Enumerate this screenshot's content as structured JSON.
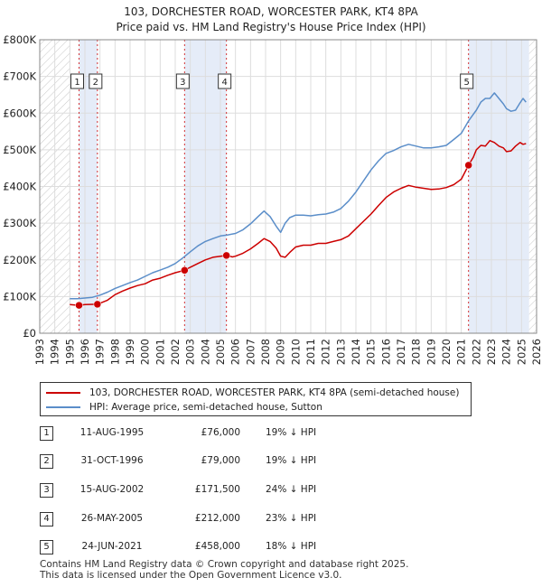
{
  "chart_data": {
    "type": "line",
    "title": "103, DORCHESTER ROAD, WORCESTER PARK, KT4 8PA",
    "subtitle": "Price paid vs. HM Land Registry's House Price Index (HPI)",
    "xlim": [
      1993,
      2026
    ],
    "ylim": [
      0,
      800000
    ],
    "x_ticks": [
      1993,
      1994,
      1995,
      1996,
      1997,
      1998,
      1999,
      2000,
      2001,
      2002,
      2003,
      2004,
      2005,
      2006,
      2007,
      2008,
      2009,
      2010,
      2011,
      2012,
      2013,
      2014,
      2015,
      2016,
      2017,
      2018,
      2019,
      2020,
      2021,
      2022,
      2023,
      2024,
      2025,
      2026
    ],
    "y_ticks": [
      0,
      100000,
      200000,
      300000,
      400000,
      500000,
      600000,
      700000,
      800000
    ],
    "y_tick_labels": [
      "£0",
      "£100K",
      "£200K",
      "£300K",
      "£400K",
      "£500K",
      "£600K",
      "£700K",
      "£800K"
    ],
    "hatch_before": 1995,
    "hatch_after": 2025.5,
    "shaded_spans": [
      [
        1995.61,
        1996.83
      ],
      [
        2002.62,
        2005.4
      ],
      [
        2021.48,
        2025.5
      ]
    ],
    "colors": {
      "price": "#cc0000",
      "hpi": "#5b8ec9",
      "marker": "#cc0000",
      "guide": "#cc0000",
      "shade": "#dce6f5"
    },
    "series": [
      {
        "name": "103, DORCHESTER ROAD, WORCESTER PARK, KT4 8PA (semi-detached house)",
        "key": "price",
        "x": [
          1995.0,
          1995.61,
          1996.0,
          1996.83,
          1997.5,
          1998,
          1998.5,
          1999,
          1999.5,
          2000,
          2000.5,
          2001,
          2001.5,
          2002,
          2002.62,
          2003,
          2003.5,
          2004,
          2004.5,
          2005,
          2005.4,
          2005.8,
          2006,
          2006.5,
          2007,
          2007.5,
          2007.9,
          2008.3,
          2008.7,
          2009,
          2009.3,
          2009.6,
          2010,
          2010.5,
          2011,
          2011.5,
          2012,
          2012.5,
          2013,
          2013.5,
          2014,
          2014.5,
          2015,
          2015.5,
          2016,
          2016.5,
          2017,
          2017.5,
          2018,
          2018.5,
          2019,
          2019.5,
          2020,
          2020.5,
          2021,
          2021.48,
          2021.8,
          2022,
          2022.3,
          2022.6,
          2022.9,
          2023.2,
          2023.5,
          2023.8,
          2024,
          2024.3,
          2024.6,
          2024.9,
          2025.1,
          2025.3
        ],
        "y": [
          78000,
          76000,
          78000,
          79000,
          90000,
          105000,
          115000,
          123000,
          130000,
          135000,
          145000,
          150000,
          158000,
          165000,
          171500,
          180000,
          190000,
          200000,
          207000,
          210000,
          212000,
          208000,
          210000,
          218000,
          230000,
          245000,
          258000,
          250000,
          232000,
          210000,
          207000,
          220000,
          235000,
          240000,
          240000,
          245000,
          245000,
          250000,
          255000,
          265000,
          285000,
          305000,
          325000,
          348000,
          370000,
          385000,
          395000,
          403000,
          398000,
          395000,
          392000,
          393000,
          397000,
          405000,
          420000,
          458000,
          480000,
          500000,
          512000,
          510000,
          525000,
          520000,
          510000,
          505000,
          495000,
          497000,
          510000,
          520000,
          515000,
          517000
        ]
      },
      {
        "name": "HPI: Average price, semi-detached house, Sutton",
        "key": "hpi",
        "x": [
          1995.0,
          1995.5,
          1996,
          1996.5,
          1997,
          1997.5,
          1998,
          1998.5,
          1999,
          1999.5,
          2000,
          2000.5,
          2001,
          2001.5,
          2002,
          2002.5,
          2003,
          2003.5,
          2004,
          2004.5,
          2005,
          2005.5,
          2006,
          2006.5,
          2007,
          2007.5,
          2007.9,
          2008.3,
          2008.7,
          2009,
          2009.3,
          2009.6,
          2010,
          2010.5,
          2011,
          2011.5,
          2012,
          2012.5,
          2013,
          2013.5,
          2014,
          2014.5,
          2015,
          2015.5,
          2016,
          2016.5,
          2017,
          2017.5,
          2018,
          2018.5,
          2019,
          2019.5,
          2020,
          2020.5,
          2021,
          2021.5,
          2022,
          2022.3,
          2022.6,
          2022.9,
          2023.2,
          2023.5,
          2023.8,
          2024,
          2024.3,
          2024.6,
          2024.9,
          2025.1,
          2025.3
        ],
        "y": [
          94000,
          94000,
          96000,
          98000,
          104000,
          112000,
          122000,
          130000,
          138000,
          145000,
          155000,
          165000,
          172000,
          180000,
          190000,
          205000,
          222000,
          238000,
          250000,
          258000,
          265000,
          268000,
          272000,
          282000,
          298000,
          318000,
          333000,
          318000,
          292000,
          275000,
          300000,
          315000,
          322000,
          322000,
          320000,
          323000,
          325000,
          330000,
          340000,
          360000,
          385000,
          415000,
          445000,
          470000,
          490000,
          498000,
          508000,
          515000,
          510000,
          505000,
          505000,
          508000,
          512000,
          528000,
          545000,
          580000,
          608000,
          630000,
          640000,
          640000,
          655000,
          640000,
          625000,
          612000,
          605000,
          608000,
          628000,
          640000,
          630000
        ]
      }
    ],
    "sales": [
      {
        "id": "1",
        "x": 1995.61,
        "y": 76000,
        "date": "11-AUG-1995",
        "price": "£76,000",
        "hpi_diff": "19% ↓ HPI"
      },
      {
        "id": "2",
        "x": 1996.83,
        "y": 79000,
        "date": "31-OCT-1996",
        "price": "£79,000",
        "hpi_diff": "19% ↓ HPI"
      },
      {
        "id": "3",
        "x": 2002.62,
        "y": 171500,
        "date": "15-AUG-2002",
        "price": "£171,500",
        "hpi_diff": "24% ↓ HPI"
      },
      {
        "id": "4",
        "x": 2005.4,
        "y": 212000,
        "date": "26-MAY-2005",
        "price": "£212,000",
        "hpi_diff": "23% ↓ HPI"
      },
      {
        "id": "5",
        "x": 2021.48,
        "y": 458000,
        "date": "24-JUN-2021",
        "price": "£458,000",
        "hpi_diff": "18% ↓ HPI"
      }
    ]
  },
  "footer": {
    "line1": "Contains HM Land Registry data © Crown copyright and database right 2025.",
    "line2": "This data is licensed under the Open Government Licence v3.0."
  }
}
